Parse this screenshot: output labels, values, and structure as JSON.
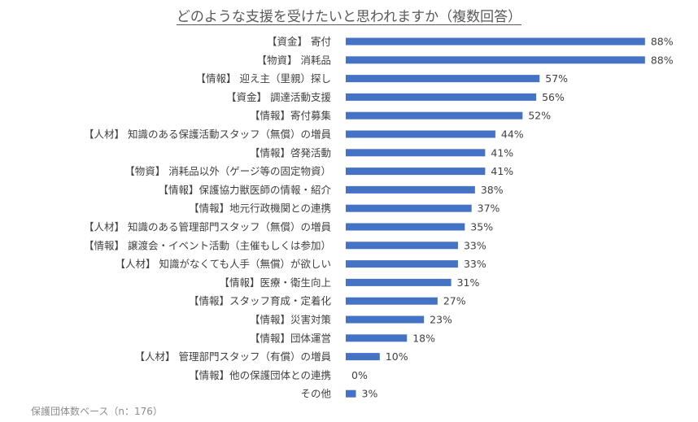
{
  "chart_data": {
    "type": "bar",
    "orientation": "horizontal",
    "title": "どのような支援を受けたいと思われますか（複数回答）",
    "categories": [
      "【資金】 寄付",
      "【物資】 消耗品",
      "【情報】 迎え主（里親）探し",
      "【資金】 調達活動支援",
      "【情報】寄付募集",
      "【人材】 知識のある保護活動スタッフ（無償）の増員",
      "【情報】啓発活動",
      "【物資】 消耗品以外（ゲージ等の固定物資）",
      "【情報】保護協力獣医師の情報・紹介",
      "【情報】地元行政機関との連携",
      "【人材】 知識のある管理部門スタッフ（無償）の増員",
      "【情報】 譲渡会・イベント活動（主催もしくは参加）",
      "【人材】 知識がなくても人手（無償）が欲しい",
      "【情報】医療・衛生向上",
      "【情報】スタッフ育成・定着化",
      "【情報】災害対策",
      "【情報】団体運営",
      "【人材】 管理部門スタッフ（有償）の増員",
      "【情報】他の保護団体との連携",
      "その他"
    ],
    "values": [
      88,
      88,
      57,
      56,
      52,
      44,
      41,
      41,
      38,
      37,
      35,
      33,
      33,
      31,
      27,
      23,
      18,
      10,
      0,
      3
    ],
    "value_labels": [
      "88%",
      "88%",
      "57%",
      "56%",
      "52%",
      "44%",
      "41%",
      "41%",
      "38%",
      "37%",
      "35%",
      "33%",
      "33%",
      "31%",
      "27%",
      "23%",
      "18%",
      "10%",
      "0%",
      "3%"
    ],
    "unit": "%",
    "xlim": [
      0,
      100
    ],
    "grid": false,
    "bar_color": "#4472C4",
    "footnote": "保護団体数ベース（n：176）"
  }
}
